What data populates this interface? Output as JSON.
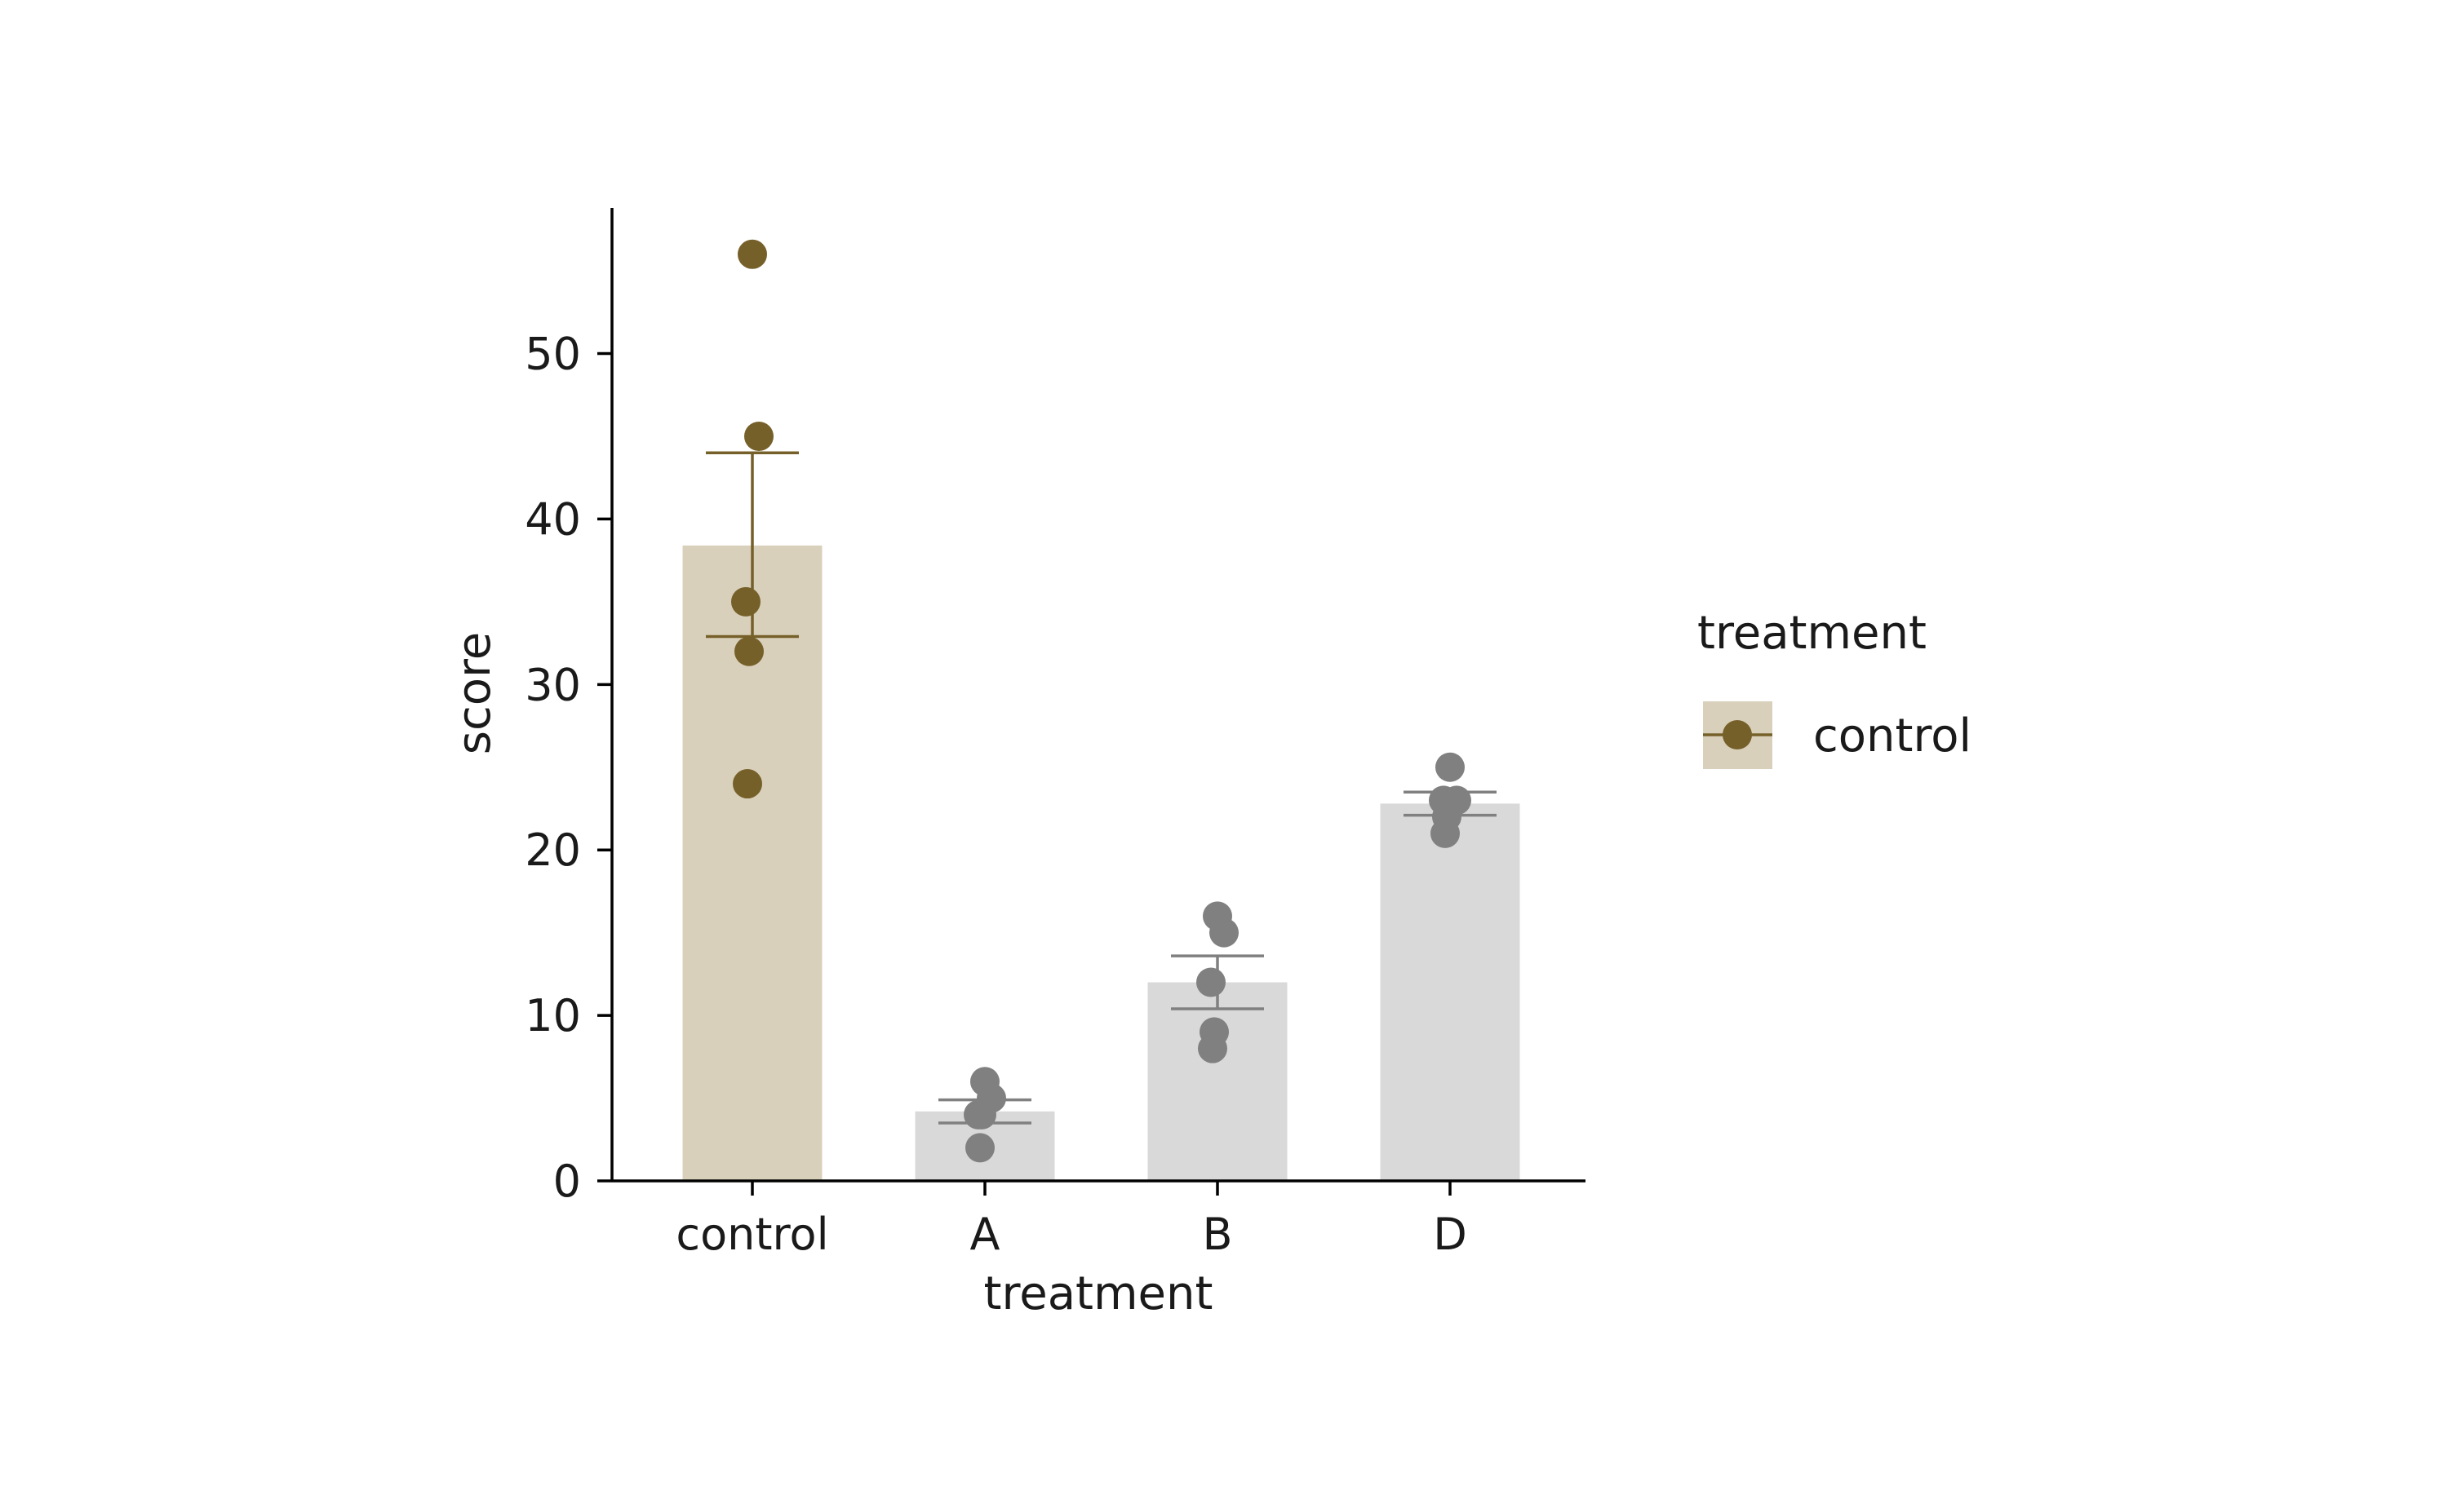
{
  "chart_data": {
    "type": "bar",
    "title": "",
    "xlabel": "treatment",
    "ylabel": "score",
    "categories": [
      "control",
      "A",
      "B",
      "D"
    ],
    "ylim": [
      0,
      58.8
    ],
    "yticks": [
      0,
      10,
      20,
      30,
      40,
      50
    ],
    "grid": false,
    "bars": [
      {
        "category": "control",
        "mean": 38.4,
        "error_low": 32.9,
        "error_high": 44.0,
        "points": [
          56,
          45,
          35,
          32,
          24
        ],
        "bar_color": "#d9d0bb",
        "point_color": "#76602a"
      },
      {
        "category": "A",
        "mean": 4.2,
        "error_low": 3.5,
        "error_high": 4.9,
        "points": [
          6,
          5,
          4,
          4,
          2
        ],
        "bar_color": "#d9d9d9",
        "point_color": "#808080"
      },
      {
        "category": "B",
        "mean": 12.0,
        "error_low": 10.4,
        "error_high": 13.6,
        "points": [
          16,
          15,
          12,
          9,
          8
        ],
        "bar_color": "#d9d9d9",
        "point_color": "#808080"
      },
      {
        "category": "D",
        "mean": 22.8,
        "error_low": 22.1,
        "error_high": 23.5,
        "points": [
          25,
          23,
          23,
          22,
          21
        ],
        "bar_color": "#d9d9d9",
        "point_color": "#808080"
      }
    ],
    "legend": {
      "title": "treatment",
      "placement": "right",
      "entries": [
        {
          "label": "control",
          "bar_color": "#d9d0bb",
          "point_color": "#76602a"
        }
      ]
    }
  }
}
